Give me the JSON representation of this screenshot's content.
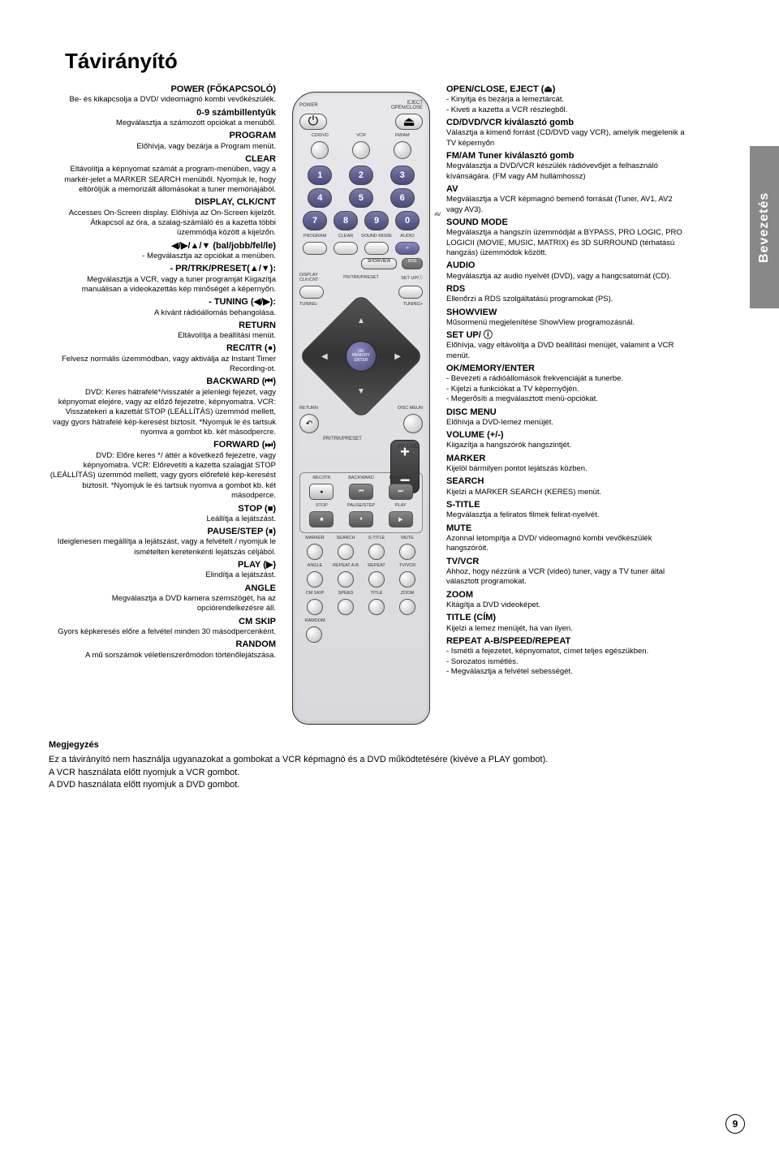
{
  "title": "Távirányító",
  "side_tab": "Bevezetés",
  "page_number": "9",
  "remote_labels": {
    "power": "POWER",
    "eject": "EJECT",
    "openclose": "OPEN/CLOSE",
    "cddvd": "CD/DVD",
    "vcr": "VCR",
    "fmam": "FM/AM",
    "av": "AV",
    "program": "PROGRAM",
    "clear": "CLEAR",
    "soundmode": "SOUND MODE",
    "audio": "AUDIO",
    "showview": "SHOWVIEW",
    "rds": "RDS",
    "display": "DISPLAY",
    "clkcnt": "CLK/CNT",
    "prtrk": "PR/TRK/PRESET",
    "setup": "SET UP/ⓘ",
    "tuningm": "TUNING-",
    "tuningp": "TUNING+",
    "ok": "OK",
    "memory": "MEMORY",
    "enter": "ENTER",
    "return": "RETURN",
    "discmenu": "DISC MEUN",
    "volume": "VOLUME",
    "recitr": "REC/ITR",
    "backward": "BACKWARD",
    "forward": "FORWARD",
    "stop": "STOP",
    "pausestep": "PAUSE/STEP",
    "play": "PLAY",
    "marker": "MARKER",
    "search": "SEARCH",
    "stitle": "S-TITLE",
    "mute": "MUTE",
    "angle": "ANGLE",
    "repeatab": "REPEAT A-B",
    "repeat": "REPEAT",
    "tvvcr": "TV/VCR",
    "cmskip": "CM SKIP",
    "speed": "SPEED",
    "titlebtn": "TITLE",
    "zoom": "ZOOM",
    "random": "RAMDOM"
  },
  "left": [
    {
      "h": "POWER (FŐKAPCSOLÓ)",
      "b": "Be- és kikapcsolja a DVD/ videomagnó kombi vevőkészülék."
    },
    {
      "h": "0-9 számbillentyűk",
      "b": "Megválasztja a számozott opciókat a menüből."
    },
    {
      "h": "PROGRAM",
      "b": "Előhívja, vagy bezárja a Program menüt."
    },
    {
      "h": "CLEAR",
      "b": "Eltávolítja a képnyomat számát a program-menüben, vagy a markér-jelet a MARKER SEARCH menüből. Nyomjuk le, hogy eltöröljük a memorizált állomásokat a tuner memóriájából."
    },
    {
      "h": "DISPLAY, CLK/CNT",
      "b": "Accesses On-Screen display. Előhívja az On-Screen kijelzőt. Átkapcsol az óra, a szalag-számláló és a kazetta többi üzemmódja között a kijelzőn."
    },
    {
      "h": "◀/▶/▲/▼ (bal/jobb/fel/le)",
      "b": "- Megválasztja az opciókat a menüben."
    },
    {
      "h": "- PR/TRK/PRESET(▲/▼):",
      "b": "Megválasztja a VCR, vagy a tuner programját Kiigazítja manuálisan a videokazettás kép minőségét a képernyőn."
    },
    {
      "h": "- TUNING (◀/▶):",
      "b": "A kívánt rádióállomás behangolása."
    },
    {
      "h": "RETURN",
      "b": "Eltávolítja a beállítási menüt."
    },
    {
      "h": "REC/ITR (●)",
      "b": "Felvesz normális üzemmódban, vagy aktiválja az Instant Timer Recording-ot."
    },
    {
      "h": "BACKWARD (⏮)",
      "b": "DVD: Keres hátrafelé*/visszatér a jelenlegi fejezet, vagy képnyomat elejére, vagy az előző fejezetre, képnyomatra. VCR: Visszatekeri a kazettát STOP (LEÁLLÍTÁS) üzemmód mellett, vagy gyors hátrafelé kép-keresést biztosít. *Nyomjuk le és tartsuk nyomva a gombot kb. két másodpercre."
    },
    {
      "h": "FORWARD (⏭)",
      "b": "DVD: Előre keres */ áttér a következő fejezetre, vagy képnyomatra. VCR: Előrevetíti a kazetta szalagját STOP (LEÁLLÍTÁS) üzemmód mellett, vagy gyors előrefelé kép-keresést biztosít. *Nyomjuk le és tartsuk nyomva a gombot kb. két másodperce."
    },
    {
      "h": "STOP (■)",
      "b": "Leállítja a lejátszást."
    },
    {
      "h": "PAUSE/STEP (⏸)",
      "b": "Ideiglenesen megállítja a lejátszást, vagy a felvételt / nyomjuk le ismételten keretenkénti lejátszás céljából."
    },
    {
      "h": "PLAY (▶)",
      "b": "Elindítja a lejátszást."
    },
    {
      "h": "ANGLE",
      "b": "Megválasztja a DVD kamera szemszögét, ha az opciórendelkezésre áll."
    },
    {
      "h": "CM SKIP",
      "b": "Gyors képkeresés előre a felvétel minden 30 másodpercenként."
    },
    {
      "h": "RANDOM",
      "b": "A mű sorszámok véletlenszerőmódon történőlejátszása."
    }
  ],
  "right": [
    {
      "h": "OPEN/CLOSE, EJECT (⏏)",
      "b": "- Kinyitja és bezárja a lemeztárcát.\n- Kiveti a kazetta a VCR részlegből."
    },
    {
      "h": "CD/DVD/VCR kiválasztó gomb",
      "b": "Választja a kimenő forrást (CD/DVD vagy VCR), amelyik megjelenik a TV képernyőn"
    },
    {
      "h": "FM/AM Tuner kiválasztó gomb",
      "b": "Megválasztja a DVD/VCR készülék rádióvevőjét a felhasználó kívánságára. (FM vagy AM hullámhossz)"
    },
    {
      "h": "AV",
      "b": "Megválasztja a VCR képmagnó bemenő forrását (Tuner, AV1, AV2 vagy AV3)."
    },
    {
      "h": "SOUND MODE",
      "b": "Megválasztja a hangszín üzemmódját a BYPASS, PRO LOGIC, PRO LOGICII (MOVIE, MUSIC, MATRIX) és 3D SURROUND (térhatású hangzás) üzemmódok között."
    },
    {
      "h": "AUDIO",
      "b": "Megválasztja az audio nyelvét (DVD), vagy a hangcsatornát (CD)."
    },
    {
      "h": "RDS",
      "b": "Ellenőrzi a RDS szolgáltatású programokat (PS)."
    },
    {
      "h": "SHOWVIEW",
      "b": "Műsormenü megjelenítése ShowView programozásnál."
    },
    {
      "h": "SET UP/ ⓘ",
      "b": "Előhívja, vagy eltávolítja a DVD beállítási menüjét, valamint a VCR menüt."
    },
    {
      "h": "OK/MEMORY/ENTER",
      "b": "- Bevezeti a rádióállomások frekvenciáját a tunerbe.\n- Kijelzi a funkciókat a TV képernyőjén.\n- Megerősíti a megválasztott menü-opciókat."
    },
    {
      "h": "DISC MENU",
      "b": "Előhívja a DVD-lemez menüjét."
    },
    {
      "h": "VOLUME (+/-)",
      "b": "Kiigazítja a hangszórók hangszintjét."
    },
    {
      "h": "MARKER",
      "b": "Kijelöl bármilyen pontot lejátszás közben."
    },
    {
      "h": "SEARCH",
      "b": "Kijelzi a MARKER SEARCH (KERES) menüt."
    },
    {
      "h": "S-TITLE",
      "b": "Megválasztja a feliratos filmek felirat-nyelvét."
    },
    {
      "h": "MUTE",
      "b": "Azonnal letompítja a DVD/ videomagnó kombi vevőkészülék hangszóróit."
    },
    {
      "h": "TV/VCR",
      "b": "Ahhoz, hogy nézzünk a VCR (videó) tuner, vagy a TV tuner által választott programokat."
    },
    {
      "h": "ZOOM",
      "b": "Kitágítja a DVD videoképet."
    },
    {
      "h": "TITLE (CÍM)",
      "b": "Kijelzi a lemez menüjét, ha van ilyen."
    },
    {
      "h": "REPEAT A-B/SPEED/REPEAT",
      "b": "- Ismétli a fejezetet, képnyomatot, címet teljes egészükben.\n- Sorozatos ismétlés.\n- Megválasztja a felvétel sebességét."
    }
  ],
  "note": {
    "heading": "Megjegyzés",
    "lines": [
      "Ez a távirányító nem használja ugyanazokat a gombokat a VCR képmagnó és a DVD működtetésére (kivéve a PLAY gombot).",
      "A VCR használata előtt nyomjuk a VCR gombot.",
      "A DVD használata előtt nyomjuk a DVD gombot."
    ]
  },
  "colors": {
    "side_tab_bg": "#888888",
    "remote_bg_top": "#e8e8ec",
    "remote_bg_bottom": "#d8d8dd",
    "numbtn_top": "#7a7aa8",
    "numbtn_bottom": "#4a4a78"
  }
}
